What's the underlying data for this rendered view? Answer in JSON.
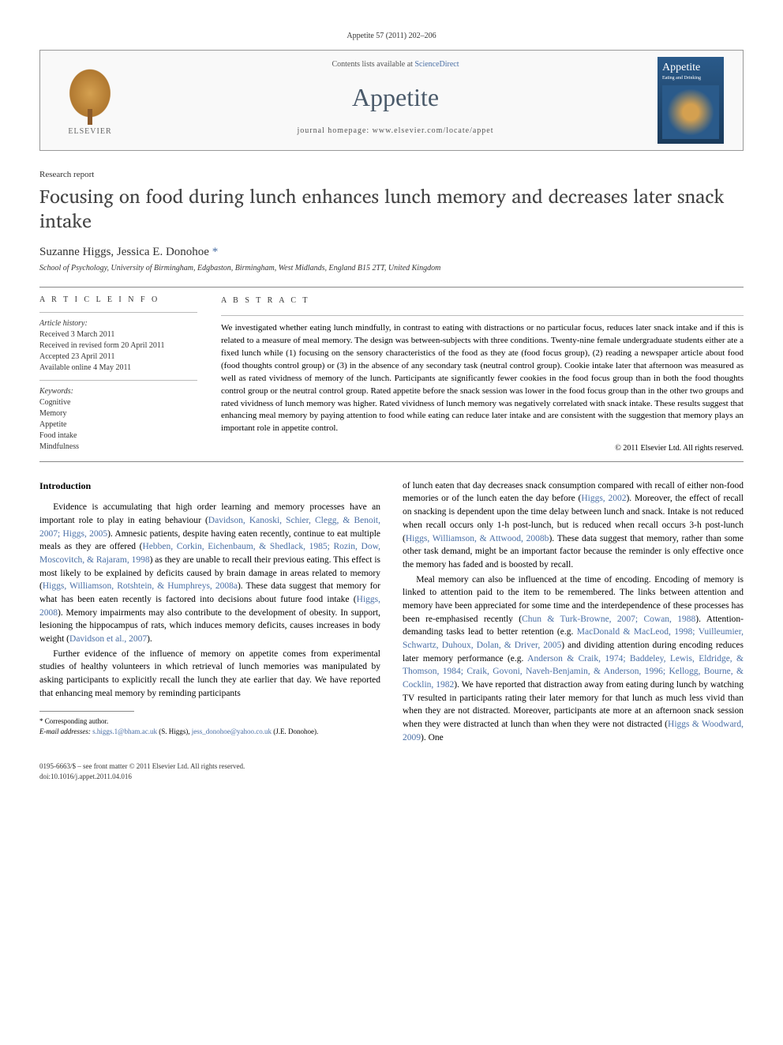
{
  "citation": "Appetite 57 (2011) 202–206",
  "masthead": {
    "contents_prefix": "Contents lists available at ",
    "contents_link": "ScienceDirect",
    "journal_name": "Appetite",
    "homepage_label": "journal homepage: www.elsevier.com/locate/appet",
    "publisher_name": "ELSEVIER",
    "cover_title": "Appetite",
    "cover_sub": "Eating and Drinking"
  },
  "section_label": "Research report",
  "title": "Focusing on food during lunch enhances lunch memory and decreases later snack intake",
  "authors": "Suzanne Higgs, Jessica E. Donohoe",
  "corr_marker": "*",
  "affiliation": "School of Psychology, University of Birmingham, Edgbaston, Birmingham, West Midlands, England B15 2TT, United Kingdom",
  "info": {
    "heading": "A R T I C L E   I N F O",
    "history_label": "Article history:",
    "received": "Received 3 March 2011",
    "revised": "Received in revised form 20 April 2011",
    "accepted": "Accepted 23 April 2011",
    "online": "Available online 4 May 2011",
    "keywords_label": "Keywords:",
    "keywords": [
      "Cognitive",
      "Memory",
      "Appetite",
      "Food intake",
      "Mindfulness"
    ]
  },
  "abstract": {
    "heading": "A B S T R A C T",
    "text": "We investigated whether eating lunch mindfully, in contrast to eating with distractions or no particular focus, reduces later snack intake and if this is related to a measure of meal memory. The design was between-subjects with three conditions. Twenty-nine female undergraduate students either ate a fixed lunch while (1) focusing on the sensory characteristics of the food as they ate (food focus group), (2) reading a newspaper article about food (food thoughts control group) or (3) in the absence of any secondary task (neutral control group). Cookie intake later that afternoon was measured as well as rated vividness of memory of the lunch. Participants ate significantly fewer cookies in the food focus group than in both the food thoughts control group or the neutral control group. Rated appetite before the snack session was lower in the food focus group than in the other two groups and rated vividness of lunch memory was higher. Rated vividness of lunch memory was negatively correlated with snack intake. These results suggest that enhancing meal memory by paying attention to food while eating can reduce later intake and are consistent with the suggestion that memory plays an important role in appetite control.",
    "copyright": "© 2011 Elsevier Ltd. All rights reserved."
  },
  "body": {
    "intro_heading": "Introduction",
    "p1a": "Evidence is accumulating that high order learning and memory processes have an important role to play in eating behaviour (",
    "p1_cite1": "Davidson, Kanoski, Schier, Clegg, & Benoit, 2007; Higgs, 2005",
    "p1b": "). Amnesic patients, despite having eaten recently, continue to eat multiple meals as they are offered (",
    "p1_cite2": "Hebben, Corkin, Eichenbaum, & Shedlack, 1985; Rozin, Dow, Moscovitch, & Rajaram, 1998",
    "p1c": ") as they are unable to recall their previous eating. This effect is most likely to be explained by deficits caused by brain damage in areas related to memory (",
    "p1_cite3": "Higgs, Williamson, Rotshtein, & Humphreys, 2008a",
    "p1d": "). These data suggest that memory for what has been eaten recently is factored into decisions about future food intake (",
    "p1_cite4": "Higgs, 2008",
    "p1e": "). Memory impairments may also contribute to the development of obesity. In support, lesioning the hippocampus of rats, which induces memory deficits, causes increases in body weight (",
    "p1_cite5": "Davidson et al., 2007",
    "p1f": ").",
    "p2": "Further evidence of the influence of memory on appetite comes from experimental studies of healthy volunteers in which retrieval of lunch memories was manipulated by asking participants to explicitly recall the lunch they ate earlier that day. We have reported that enhancing meal memory by reminding participants",
    "p3a": "of lunch eaten that day decreases snack consumption compared with recall of either non-food memories or of the lunch eaten the day before (",
    "p3_cite1": "Higgs, 2002",
    "p3b": "). Moreover, the effect of recall on snacking is dependent upon the time delay between lunch and snack. Intake is not reduced when recall occurs only 1-h post-lunch, but is reduced when recall occurs 3-h post-lunch (",
    "p3_cite2": "Higgs, Williamson, & Attwood, 2008b",
    "p3c": "). These data suggest that memory, rather than some other task demand, might be an important factor because the reminder is only effective once the memory has faded and is boosted by recall.",
    "p4a": "Meal memory can also be influenced at the time of encoding. Encoding of memory is linked to attention paid to the item to be remembered. The links between attention and memory have been appreciated for some time and the interdependence of these processes has been re-emphasised recently (",
    "p4_cite1": "Chun & Turk-Browne, 2007; Cowan, 1988",
    "p4b": "). Attention-demanding tasks lead to better retention (e.g. ",
    "p4_cite2": "MacDonald & MacLeod, 1998; Vuilleumier, Schwartz, Duhoux, Dolan, & Driver, 2005",
    "p4c": ") and dividing attention during encoding reduces later memory performance (e.g. ",
    "p4_cite3": "Anderson & Craik, 1974; Baddeley, Lewis, Eldridge, & Thomson, 1984; Craik, Govoni, Naveh-Benjamin, & Anderson, 1996; Kellogg, Bourne, & Cocklin, 1982",
    "p4d": "). We have reported that distraction away from eating during lunch by watching TV resulted in participants rating their later memory for that lunch as much less vivid than when they are not distracted. Moreover, participants ate more at an afternoon snack session when they were distracted at lunch than when they were not distracted (",
    "p4_cite4": "Higgs & Woodward, 2009",
    "p4e": "). One"
  },
  "footnote": {
    "corr_label": "* Corresponding author.",
    "email_label": "E-mail addresses:",
    "email1": "s.higgs.1@bham.ac.uk",
    "name1": " (S. Higgs), ",
    "email2": "jess_donohoe@yahoo.co.uk",
    "name2": " (J.E. Donohoe)."
  },
  "footer": {
    "line1": "0195-6663/$ – see front matter © 2011 Elsevier Ltd. All rights reserved.",
    "line2": "doi:10.1016/j.appet.2011.04.016"
  },
  "colors": {
    "link": "#4a6fa5",
    "heading": "#434343",
    "text": "#000000"
  }
}
